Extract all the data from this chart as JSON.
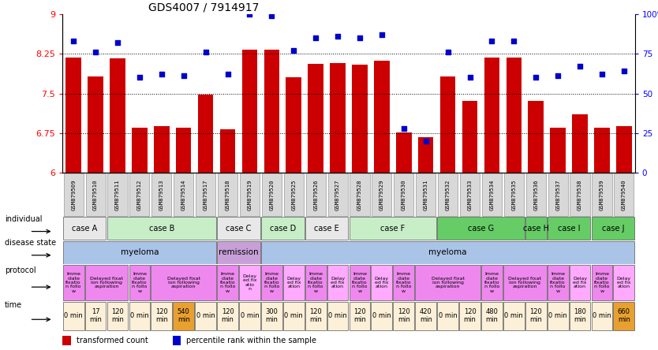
{
  "title": "GDS4007 / 7914917",
  "samples": [
    "GSM879509",
    "GSM879510",
    "GSM879511",
    "GSM879512",
    "GSM879513",
    "GSM879514",
    "GSM879517",
    "GSM879518",
    "GSM879519",
    "GSM879520",
    "GSM879525",
    "GSM879526",
    "GSM879527",
    "GSM879528",
    "GSM879529",
    "GSM879530",
    "GSM879531",
    "GSM879532",
    "GSM879533",
    "GSM879534",
    "GSM879535",
    "GSM879536",
    "GSM879537",
    "GSM879538",
    "GSM879539",
    "GSM879540"
  ],
  "bar_values": [
    8.18,
    7.82,
    8.16,
    6.85,
    6.88,
    6.85,
    7.48,
    6.82,
    8.33,
    8.33,
    7.8,
    8.06,
    8.08,
    8.05,
    8.12,
    6.76,
    6.68,
    7.82,
    7.36,
    8.18,
    8.18,
    7.36,
    6.85,
    7.1,
    6.85,
    6.88
  ],
  "dot_values": [
    83,
    76,
    82,
    60,
    62,
    61,
    76,
    62,
    100,
    99,
    77,
    85,
    86,
    85,
    87,
    28,
    20,
    76,
    60,
    83,
    83,
    60,
    61,
    67,
    62,
    64
  ],
  "ylim_left": [
    6.0,
    9.0
  ],
  "ylim_right": [
    0,
    100
  ],
  "yticks_left": [
    6.0,
    6.75,
    7.5,
    8.25,
    9.0
  ],
  "yticks_right": [
    0,
    25,
    50,
    75,
    100
  ],
  "bar_color": "#cc0000",
  "dot_color": "#0000cc",
  "individual_cases": [
    {
      "label": "case A",
      "start": 0,
      "end": 2,
      "color": "#e8e8e8"
    },
    {
      "label": "case B",
      "start": 2,
      "end": 7,
      "color": "#c8eec8"
    },
    {
      "label": "case C",
      "start": 7,
      "end": 9,
      "color": "#e8e8e8"
    },
    {
      "label": "case D",
      "start": 9,
      "end": 11,
      "color": "#c8eec8"
    },
    {
      "label": "case E",
      "start": 11,
      "end": 13,
      "color": "#e8e8e8"
    },
    {
      "label": "case F",
      "start": 13,
      "end": 17,
      "color": "#c8eec8"
    },
    {
      "label": "case G",
      "start": 17,
      "end": 21,
      "color": "#66cc66"
    },
    {
      "label": "case H",
      "start": 21,
      "end": 22,
      "color": "#66cc66"
    },
    {
      "label": "case I",
      "start": 22,
      "end": 24,
      "color": "#66cc66"
    },
    {
      "label": "case J",
      "start": 24,
      "end": 26,
      "color": "#66cc66"
    }
  ],
  "disease_states": [
    {
      "label": "myeloma",
      "start": 0,
      "end": 7,
      "color": "#aac4e8"
    },
    {
      "label": "remission",
      "start": 7,
      "end": 9,
      "color": "#c8a0d8"
    },
    {
      "label": "myeloma",
      "start": 9,
      "end": 26,
      "color": "#aac4e8"
    }
  ],
  "protocol_spans": [
    {
      "label": "Imme\ndiate\nfixatio\nn follo\nw",
      "start": 0,
      "end": 1,
      "color": "#ee88ee"
    },
    {
      "label": "Delayed fixat\nion following\naspiration",
      "start": 1,
      "end": 3,
      "color": "#ee88ee"
    },
    {
      "label": "Imme\ndiate\nfixatio\nn follo\nw",
      "start": 3,
      "end": 4,
      "color": "#ee88ee"
    },
    {
      "label": "Delayed fixat\nion following\naspiration",
      "start": 4,
      "end": 7,
      "color": "#ee88ee"
    },
    {
      "label": "Imme\ndiate\nfixatio\nn follo\nw",
      "start": 7,
      "end": 8,
      "color": "#ee88ee"
    },
    {
      "label": "Delay\ned fix\natio\nn",
      "start": 8,
      "end": 9,
      "color": "#ffaaff"
    },
    {
      "label": "Imme\ndiate\nfixatio\nn follo\nw",
      "start": 9,
      "end": 10,
      "color": "#ee88ee"
    },
    {
      "label": "Delay\ned fix\nation",
      "start": 10,
      "end": 11,
      "color": "#ffaaff"
    },
    {
      "label": "Imme\ndiate\nfixatio\nn follo\nw",
      "start": 11,
      "end": 12,
      "color": "#ee88ee"
    },
    {
      "label": "Delay\ned fix\nation",
      "start": 12,
      "end": 13,
      "color": "#ffaaff"
    },
    {
      "label": "Imme\ndiate\nfixatio\nn follo\nw",
      "start": 13,
      "end": 14,
      "color": "#ee88ee"
    },
    {
      "label": "Delay\ned fix\nation",
      "start": 14,
      "end": 15,
      "color": "#ffaaff"
    },
    {
      "label": "Imme\ndiate\nfixatio\nn follo\nw",
      "start": 15,
      "end": 16,
      "color": "#ee88ee"
    },
    {
      "label": "Delayed fixat\nion following\naspiration",
      "start": 16,
      "end": 19,
      "color": "#ee88ee"
    },
    {
      "label": "Imme\ndiate\nfixatio\nn follo\nw",
      "start": 19,
      "end": 20,
      "color": "#ee88ee"
    },
    {
      "label": "Delayed fixat\nion following\naspiration",
      "start": 20,
      "end": 22,
      "color": "#ee88ee"
    },
    {
      "label": "Imme\ndiate\nfixatio\nn follo\nw",
      "start": 22,
      "end": 23,
      "color": "#ee88ee"
    },
    {
      "label": "Delay\ned fix\nation",
      "start": 23,
      "end": 24,
      "color": "#ffaaff"
    },
    {
      "label": "Imme\ndiate\nfixatio\nn follo\nw",
      "start": 24,
      "end": 25,
      "color": "#ee88ee"
    },
    {
      "label": "Delay\ned fix\nation",
      "start": 25,
      "end": 26,
      "color": "#ffaaff"
    }
  ],
  "time_labels": [
    "0 min",
    "17\nmin",
    "120\nmin",
    "0 min",
    "120\nmin",
    "540\nmin",
    "0 min",
    "120\nmin",
    "0 min",
    "300\nmin",
    "0 min",
    "120\nmin",
    "0 min",
    "120\nmin",
    "0 min",
    "120\nmin",
    "420\nmin",
    "0 min",
    "120\nmin",
    "480\nmin",
    "0 min",
    "120\nmin",
    "0 min",
    "180\nmin",
    "0 min",
    "660\nmin"
  ],
  "time_colors": [
    "#fdf0d8",
    "#fdf0d8",
    "#fdf0d8",
    "#fdf0d8",
    "#fdf0d8",
    "#e8a030",
    "#fdf0d8",
    "#fdf0d8",
    "#fdf0d8",
    "#fdf0d8",
    "#fdf0d8",
    "#fdf0d8",
    "#fdf0d8",
    "#fdf0d8",
    "#fdf0d8",
    "#fdf0d8",
    "#fdf0d8",
    "#fdf0d8",
    "#fdf0d8",
    "#fdf0d8",
    "#fdf0d8",
    "#fdf0d8",
    "#fdf0d8",
    "#fdf0d8",
    "#fdf0d8",
    "#e8a030"
  ]
}
